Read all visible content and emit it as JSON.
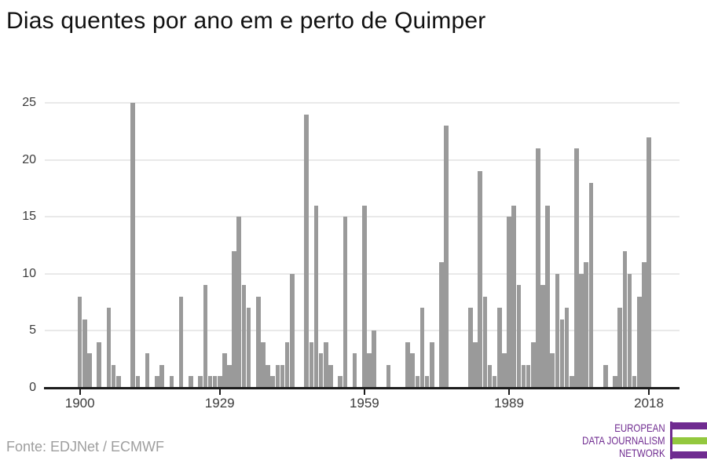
{
  "title": "Dias quentes por ano em e perto de Quimper",
  "source": "Fonte: EDJNet / ECMWF",
  "logo": {
    "lines": [
      "EUROPEAN",
      "DATA JOURNALISM",
      "NETWORK"
    ],
    "purple": "#6f2b90",
    "green": "#93c83e"
  },
  "chart_data": {
    "type": "bar",
    "title": "Dias quentes por ano em e perto de Quimper",
    "xlabel": "",
    "ylabel": "",
    "ylim": [
      0,
      25
    ],
    "yticks": [
      0,
      5,
      10,
      15,
      20,
      25
    ],
    "xticks": [
      1900,
      1929,
      1959,
      1989,
      2018
    ],
    "grid": true,
    "bar_color": "#9a9a9a",
    "categories": [
      1900,
      1901,
      1902,
      1903,
      1904,
      1905,
      1906,
      1907,
      1908,
      1909,
      1910,
      1911,
      1912,
      1913,
      1914,
      1915,
      1916,
      1917,
      1918,
      1919,
      1920,
      1921,
      1922,
      1923,
      1924,
      1925,
      1926,
      1927,
      1928,
      1929,
      1930,
      1931,
      1932,
      1933,
      1934,
      1935,
      1936,
      1937,
      1938,
      1939,
      1940,
      1941,
      1942,
      1943,
      1944,
      1945,
      1946,
      1947,
      1948,
      1949,
      1950,
      1951,
      1952,
      1953,
      1954,
      1955,
      1956,
      1957,
      1958,
      1959,
      1960,
      1961,
      1962,
      1963,
      1964,
      1965,
      1966,
      1967,
      1968,
      1969,
      1970,
      1971,
      1972,
      1973,
      1974,
      1975,
      1976,
      1977,
      1978,
      1979,
      1980,
      1981,
      1982,
      1983,
      1984,
      1985,
      1986,
      1987,
      1988,
      1989,
      1990,
      1991,
      1992,
      1993,
      1994,
      1995,
      1996,
      1997,
      1998,
      1999,
      2000,
      2001,
      2002,
      2003,
      2004,
      2005,
      2006,
      2007,
      2008,
      2009,
      2010,
      2011,
      2012,
      2013,
      2014,
      2015,
      2016,
      2017,
      2018
    ],
    "values": [
      8,
      6,
      3,
      0,
      4,
      0,
      7,
      2,
      1,
      0,
      0,
      25,
      1,
      0,
      3,
      0,
      1,
      2,
      0,
      1,
      0,
      8,
      0,
      1,
      0,
      1,
      9,
      1,
      1,
      1,
      3,
      2,
      12,
      15,
      9,
      7,
      0,
      8,
      4,
      2,
      1,
      2,
      2,
      4,
      10,
      0,
      0,
      24,
      4,
      16,
      3,
      4,
      2,
      0,
      1,
      15,
      0,
      3,
      0,
      16,
      3,
      5,
      0,
      0,
      2,
      0,
      0,
      0,
      4,
      3,
      1,
      7,
      1,
      4,
      0,
      11,
      23,
      0,
      0,
      0,
      0,
      7,
      4,
      19,
      8,
      2,
      1,
      7,
      3,
      15,
      16,
      9,
      2,
      2,
      4,
      21,
      9,
      16,
      3,
      10,
      6,
      7,
      1,
      21,
      10,
      11,
      18,
      0,
      0,
      2,
      0,
      1,
      7,
      12,
      10,
      1,
      8,
      11,
      22
    ]
  }
}
